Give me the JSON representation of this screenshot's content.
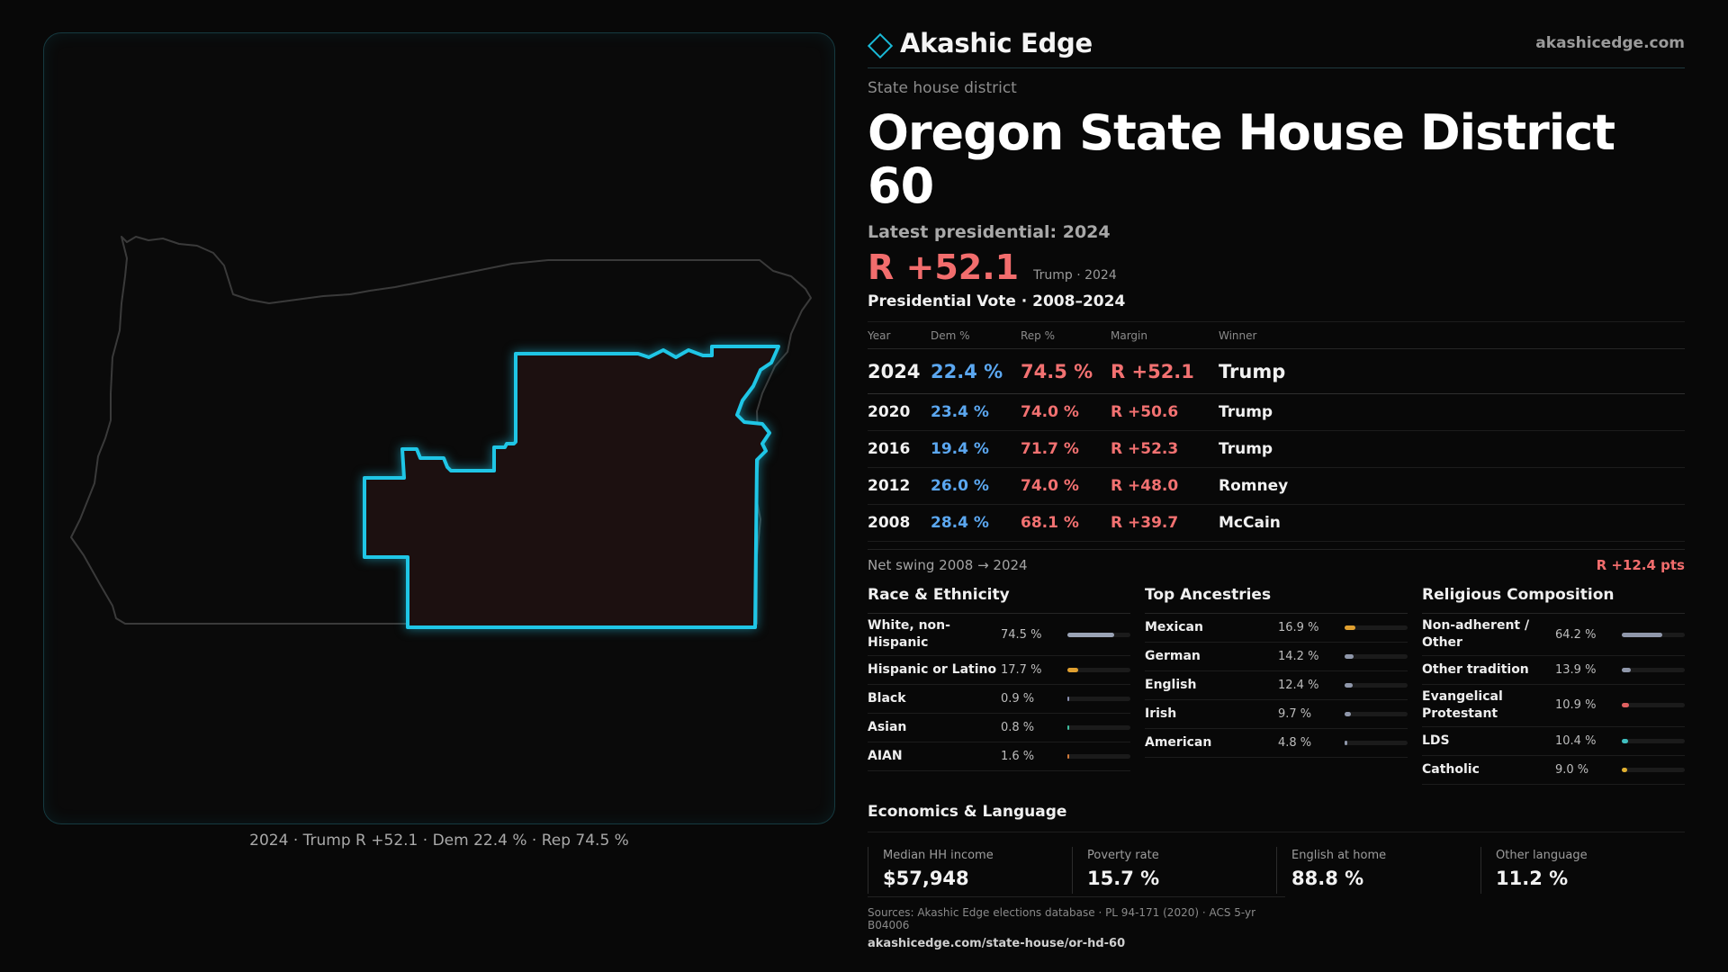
{
  "map": {
    "caption": "2024 · Trump R +52.1 · Dem 22.4 % · Rep 74.5 %",
    "state_outline_color": "#3a3a3a",
    "district_stroke_color": "#1fc6e6",
    "district_fill_color": "#1c1010"
  },
  "brand": {
    "name": "Akashic Edge",
    "url": "akashicedge.com",
    "accent_color": "#19b9d6"
  },
  "district": {
    "kind": "State house district",
    "title": "Oregon State House District 60",
    "latest_label": "Latest presidential: 2024",
    "latest_margin": "R +52.1",
    "latest_sub": "Trump · 2024"
  },
  "votes": {
    "heading": "Presidential Vote · 2008–2024",
    "columns": [
      "Year",
      "Dem %",
      "Rep %",
      "Margin",
      "Winner"
    ],
    "rows": [
      {
        "year": "2024",
        "dem": "22.4 %",
        "rep": "74.5 %",
        "margin": "R +52.1",
        "winner": "Trump"
      },
      {
        "year": "2020",
        "dem": "23.4 %",
        "rep": "74.0 %",
        "margin": "R +50.6",
        "winner": "Trump"
      },
      {
        "year": "2016",
        "dem": "19.4 %",
        "rep": "71.7 %",
        "margin": "R +52.3",
        "winner": "Trump"
      },
      {
        "year": "2012",
        "dem": "26.0 %",
        "rep": "74.0 %",
        "margin": "R +48.0",
        "winner": "Romney"
      },
      {
        "year": "2008",
        "dem": "28.4 %",
        "rep": "68.1 %",
        "margin": "R +39.7",
        "winner": "McCain"
      }
    ],
    "swing_label": "Net swing 2008 → 2024",
    "swing_value": "R +12.4 pts"
  },
  "race": {
    "heading": "Race & Ethnicity",
    "items": [
      {
        "label": "White, non-Hispanic",
        "value": "74.5 %",
        "share": 0.745,
        "color": "#9aa3b5"
      },
      {
        "label": "Hispanic or Latino",
        "value": "17.7 %",
        "share": 0.177,
        "color": "#e0a030"
      },
      {
        "label": "Black",
        "value": "0.9 %",
        "share": 0.009,
        "color": "#8a8fb0"
      },
      {
        "label": "Asian",
        "value": "0.8 %",
        "share": 0.008,
        "color": "#3fbfa0"
      },
      {
        "label": "AIAN",
        "value": "1.6 %",
        "share": 0.016,
        "color": "#d07a3a"
      }
    ]
  },
  "ancestry": {
    "heading": "Top Ancestries",
    "items": [
      {
        "label": "Mexican",
        "value": "16.9 %",
        "share": 0.169,
        "color": "#e0a030"
      },
      {
        "label": "German",
        "value": "14.2 %",
        "share": 0.142,
        "color": "#8f97aa"
      },
      {
        "label": "English",
        "value": "12.4 %",
        "share": 0.124,
        "color": "#8f97aa"
      },
      {
        "label": "Irish",
        "value": "9.7 %",
        "share": 0.097,
        "color": "#8f97aa"
      },
      {
        "label": "American",
        "value": "4.8 %",
        "share": 0.048,
        "color": "#8f97aa"
      }
    ]
  },
  "religion": {
    "heading": "Religious Composition",
    "items": [
      {
        "label": "Non-adherent / Other",
        "value": "64.2 %",
        "share": 0.642,
        "color": "#8f97aa"
      },
      {
        "label": "Other tradition",
        "value": "13.9 %",
        "share": 0.139,
        "color": "#8f97aa"
      },
      {
        "label": "Evangelical Protestant",
        "value": "10.9 %",
        "share": 0.109,
        "color": "#e06060"
      },
      {
        "label": "LDS",
        "value": "10.4 %",
        "share": 0.104,
        "color": "#3fbfc0"
      },
      {
        "label": "Catholic",
        "value": "9.0 %",
        "share": 0.09,
        "color": "#e0b030"
      }
    ]
  },
  "economics": {
    "heading": "Economics & Language",
    "cells": [
      {
        "label": "Median HH income",
        "value": "$57,948"
      },
      {
        "label": "Poverty rate",
        "value": "15.7 %"
      },
      {
        "label": "English at home",
        "value": "88.8 %"
      },
      {
        "label": "Other language",
        "value": "11.2 %"
      }
    ]
  },
  "sources": {
    "text": "Sources: Akashic Edge elections database · PL 94-171 (2020) · ACS 5-yr B04006",
    "url": "akashicedge.com/state-house/or-hd-60"
  }
}
